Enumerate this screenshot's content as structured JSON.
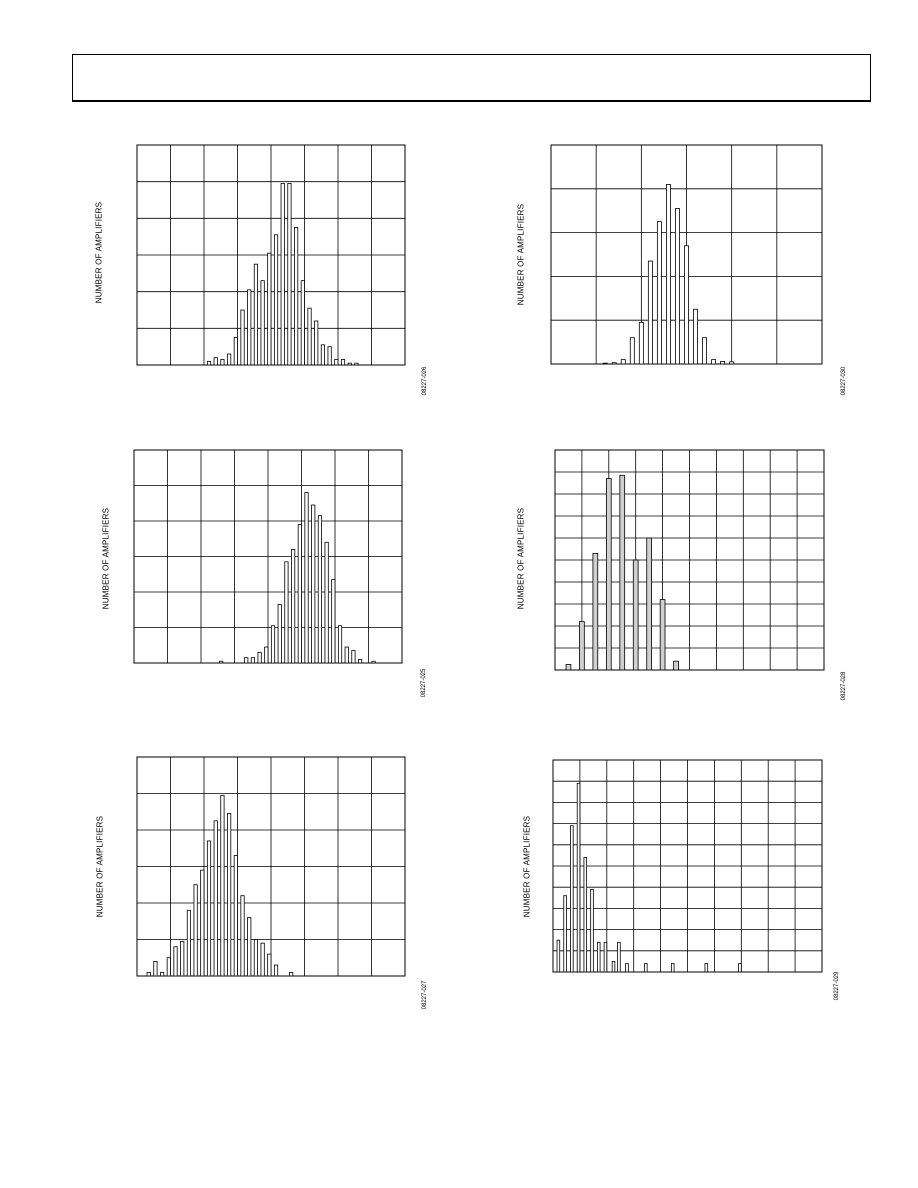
{
  "page": {
    "accent": "#000000"
  },
  "chart_data": [
    {
      "type": "bar",
      "id": "c1",
      "ylabel": "NUMBER OF AMPLIFIERS",
      "code": "08227-026",
      "xlim": [
        0,
        8
      ],
      "ylim": [
        0,
        6
      ],
      "grid": true,
      "bar_fill": "#ffffff",
      "bar_width": 0.1,
      "x": [
        2.15,
        2.35,
        2.55,
        2.75,
        2.95,
        3.15,
        3.35,
        3.55,
        3.75,
        3.95,
        4.15,
        4.35,
        4.55,
        4.75,
        4.95,
        5.15,
        5.35,
        5.55,
        5.75,
        5.95,
        6.15,
        6.35,
        6.55
      ],
      "values": [
        0.1,
        0.2,
        0.15,
        0.3,
        0.75,
        1.5,
        2.05,
        2.75,
        2.3,
        3.05,
        3.55,
        4.95,
        4.95,
        3.75,
        2.3,
        1.55,
        1.2,
        0.55,
        0.5,
        0.15,
        0.15,
        0.05,
        0.05
      ]
    },
    {
      "type": "bar",
      "id": "c2",
      "ylabel": "NUMBER OF AMPLIFIERS",
      "code": "08227-030",
      "xlim": [
        0,
        6
      ],
      "ylim": [
        0,
        5
      ],
      "grid": true,
      "bar_fill": "#ffffff",
      "bar_width": 0.09,
      "x": [
        1.2,
        1.4,
        1.6,
        1.8,
        2.0,
        2.2,
        2.4,
        2.6,
        2.8,
        3.0,
        3.2,
        3.4,
        3.6,
        3.8,
        4.0
      ],
      "values": [
        0.02,
        0.03,
        0.1,
        0.6,
        0.95,
        2.35,
        3.25,
        4.1,
        3.55,
        2.7,
        1.25,
        0.6,
        0.1,
        0.06,
        0.05
      ]
    },
    {
      "type": "bar",
      "id": "c3",
      "ylabel": "NUMBER OF AMPLIFIERS",
      "code": "08227-025",
      "xlim": [
        0,
        8
      ],
      "ylim": [
        0,
        6
      ],
      "grid": true,
      "bar_fill": "#ffffff",
      "bar_width": 0.1,
      "x": [
        2.6,
        3.35,
        3.55,
        3.75,
        3.95,
        4.15,
        4.35,
        4.55,
        4.75,
        4.95,
        5.15,
        5.35,
        5.55,
        5.75,
        5.95,
        6.15,
        6.35,
        6.55,
        6.75,
        7.15
      ],
      "values": [
        0.05,
        0.15,
        0.15,
        0.3,
        0.45,
        1.05,
        1.65,
        2.85,
        3.2,
        3.9,
        4.8,
        4.45,
        4.15,
        3.4,
        2.35,
        1.05,
        0.45,
        0.35,
        0.1,
        0.05
      ]
    },
    {
      "type": "bar",
      "id": "c4",
      "ylabel": "NUMBER OF AMPLIFIERS",
      "code": "08227-028",
      "xlim": [
        0,
        10
      ],
      "ylim": [
        0,
        10
      ],
      "grid": true,
      "bar_fill": "#cfcfcf",
      "bar_width": 0.18,
      "x": [
        0.5,
        1.0,
        1.5,
        2.0,
        2.5,
        3.0,
        3.5,
        4.0,
        4.5
      ],
      "values": [
        0.25,
        2.2,
        5.3,
        8.7,
        8.85,
        5.0,
        6.0,
        3.2,
        0.4
      ]
    },
    {
      "type": "bar",
      "id": "c5",
      "ylabel": "NUMBER OF AMPLIFIERS",
      "code": "08227-027",
      "xlim": [
        0,
        8
      ],
      "ylim": [
        0,
        6
      ],
      "grid": true,
      "bar_fill": "#ffffff",
      "bar_width": 0.1,
      "x": [
        0.35,
        0.55,
        0.75,
        0.95,
        1.15,
        1.35,
        1.55,
        1.75,
        1.95,
        2.15,
        2.35,
        2.55,
        2.75,
        2.95,
        3.15,
        3.35,
        3.55,
        3.75,
        3.95,
        4.15,
        4.6
      ],
      "values": [
        0.1,
        0.4,
        0.1,
        0.5,
        0.8,
        0.95,
        1.8,
        2.5,
        2.9,
        3.7,
        4.25,
        4.95,
        4.45,
        3.3,
        2.2,
        1.6,
        1.0,
        0.9,
        0.6,
        0.3,
        0.1
      ]
    },
    {
      "type": "bar",
      "id": "c6",
      "ylabel": "NUMBER OF AMPLIFIERS",
      "code": "08227-029",
      "xlim": [
        0,
        10
      ],
      "ylim": [
        0,
        10
      ],
      "grid": true,
      "bar_fill": "#ffffff",
      "bar_width": 0.1,
      "x": [
        0.2,
        0.45,
        0.7,
        0.95,
        1.2,
        1.45,
        1.7,
        1.95,
        2.25,
        2.45,
        2.75,
        3.45,
        4.45,
        5.7,
        6.95
      ],
      "values": [
        1.5,
        3.6,
        6.9,
        8.9,
        5.4,
        3.9,
        1.4,
        1.4,
        0.5,
        1.4,
        0.4,
        0.4,
        0.4,
        0.4,
        0.4
      ]
    }
  ]
}
